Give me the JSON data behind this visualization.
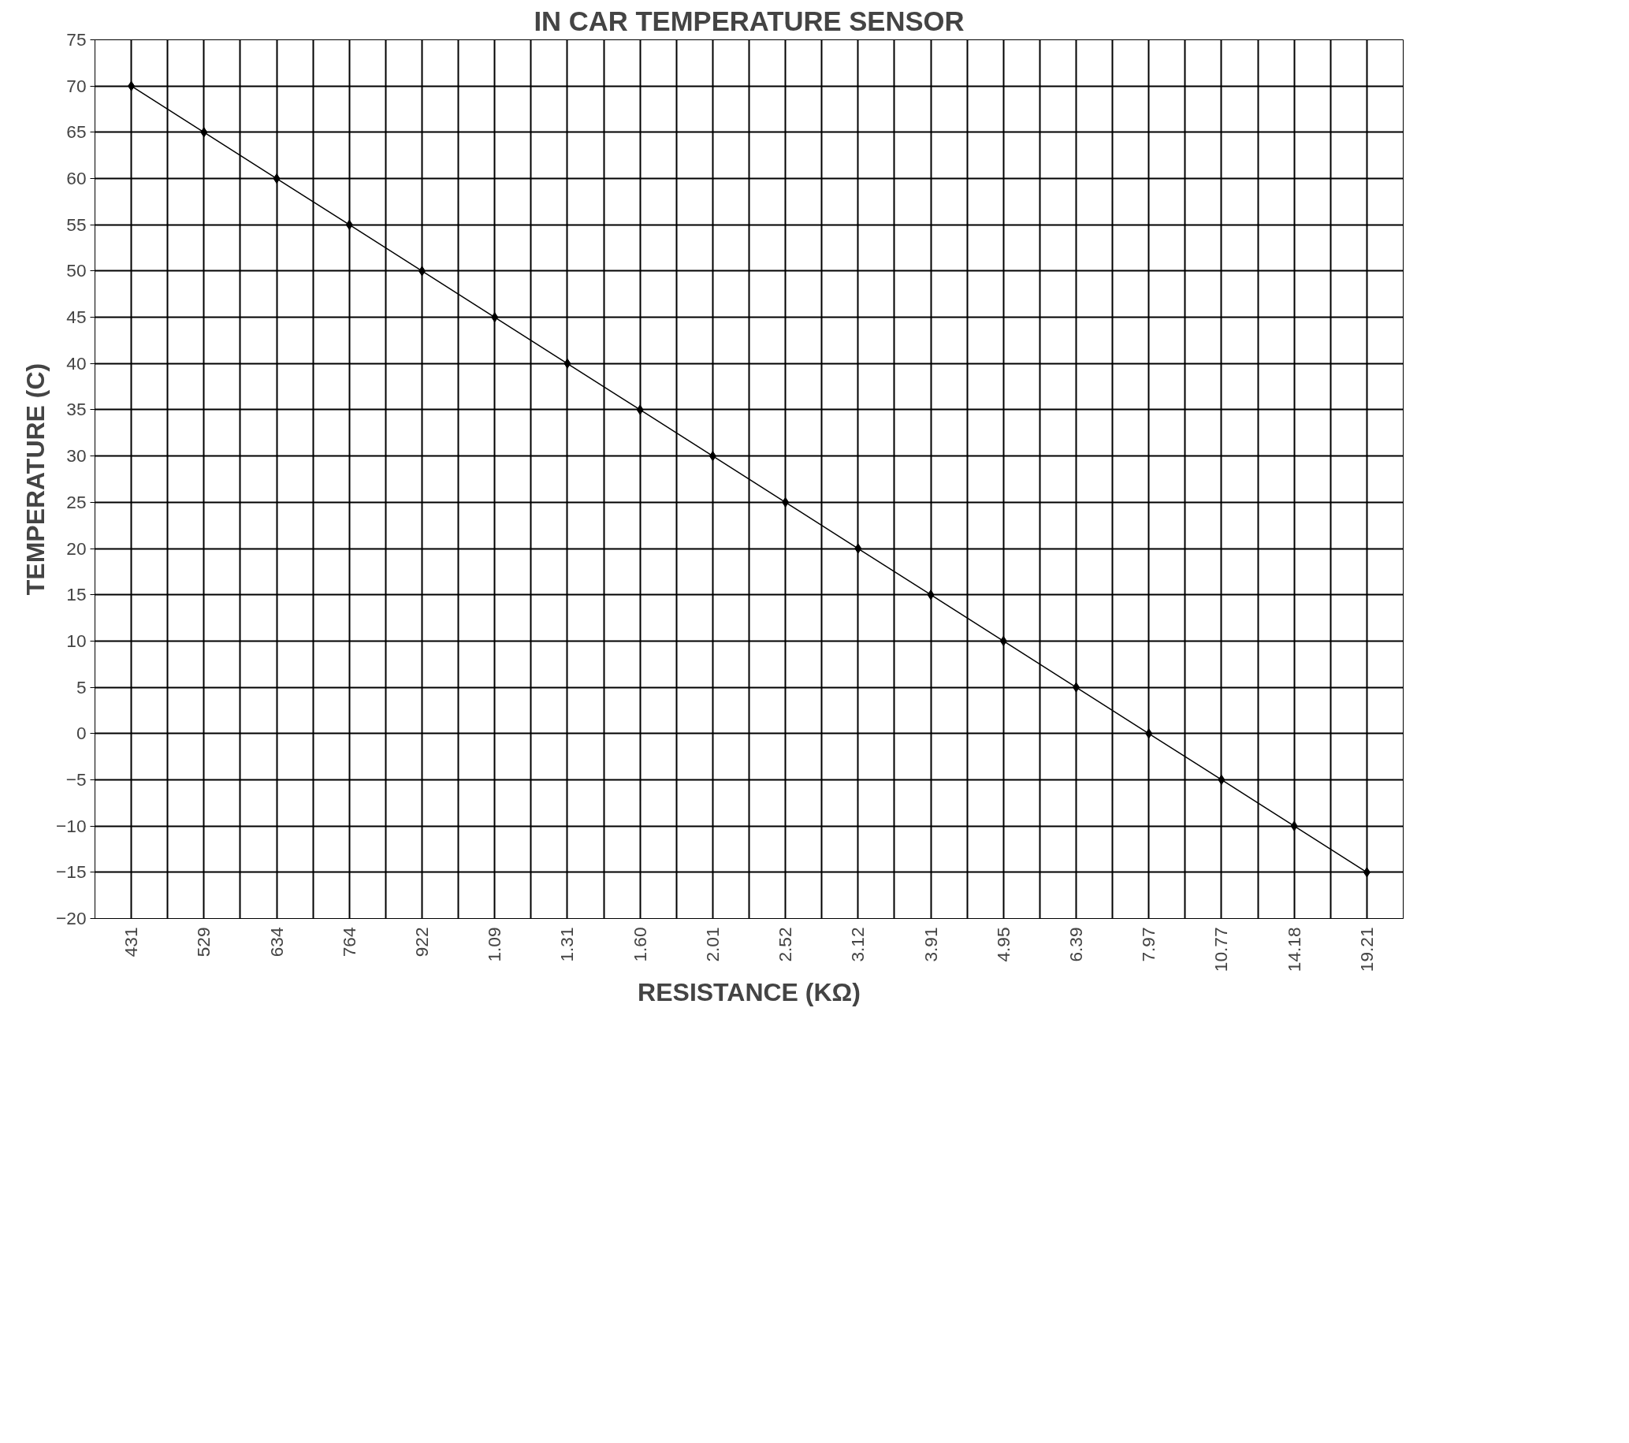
{
  "chart_data": {
    "type": "line",
    "title": "IN CAR TEMPERATURE SENSOR",
    "xlabel": "RESISTANCE (KΩ)",
    "ylabel": "TEMPERATURE (C)",
    "categories": [
      "431",
      "529",
      "634",
      "764",
      "922",
      "1.09",
      "1.31",
      "1.60",
      "2.01",
      "2.52",
      "3.12",
      "3.91",
      "4.95",
      "6.39",
      "7.97",
      "10.77",
      "14.18",
      "19.21"
    ],
    "series": [
      {
        "color": "#000000",
        "values": [
          70,
          65,
          60,
          55,
          50,
          45,
          40,
          35,
          30,
          25,
          20,
          15,
          10,
          5,
          0,
          -5,
          -10,
          -15
        ]
      }
    ],
    "ylim": [
      -20,
      75
    ],
    "yticks": [
      -20,
      -15,
      -10,
      -5,
      0,
      5,
      10,
      15,
      20,
      25,
      30,
      35,
      40,
      45,
      50,
      55,
      60,
      65,
      70,
      75
    ],
    "grid": true,
    "marker": "diamond",
    "line_style": "solid"
  }
}
